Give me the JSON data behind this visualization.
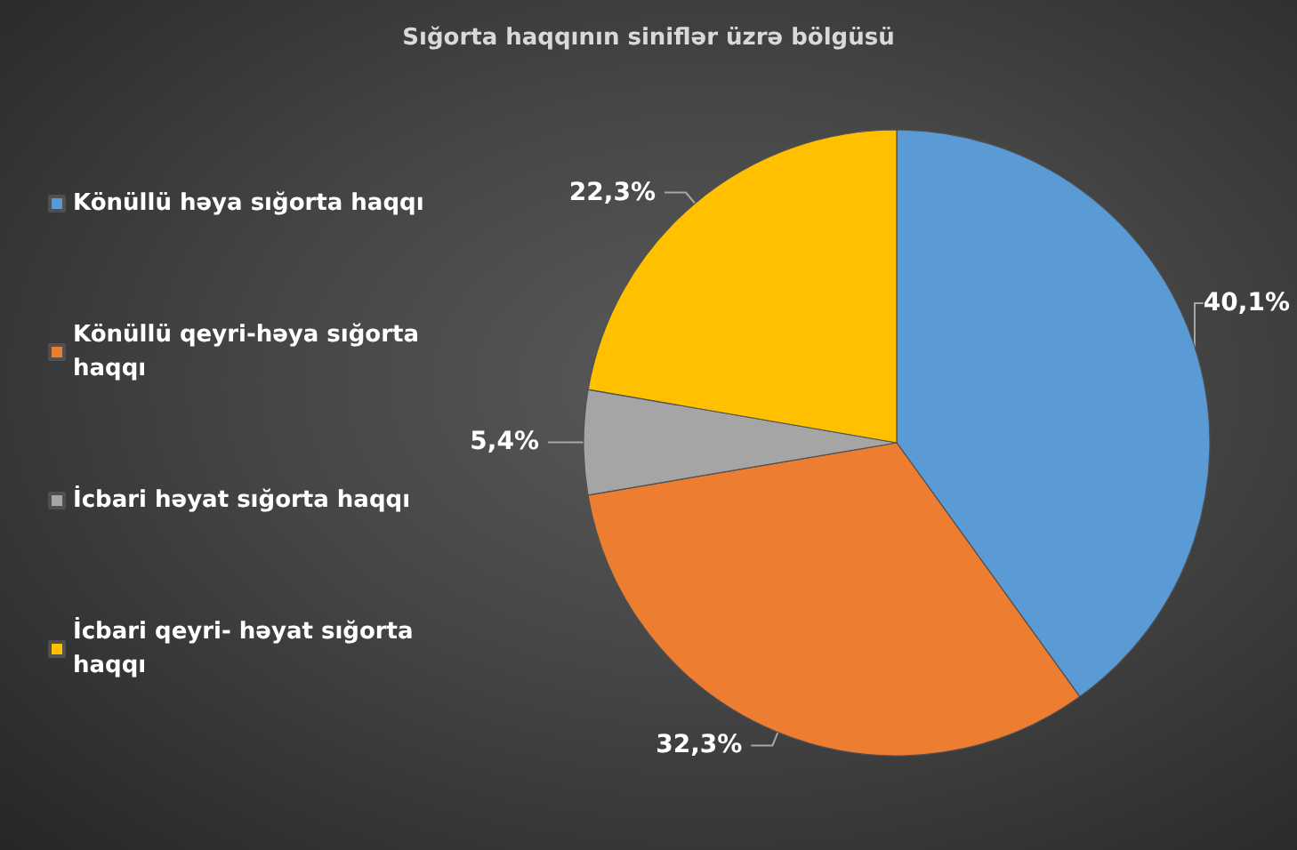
{
  "chart_data": {
    "type": "pie",
    "title": "Sığorta haqqının siniflər üzrə bölgüsü",
    "categories": [
      "Könüllü həya sığorta haqqı",
      "Könüllü qeyri-həya sığorta haqqı",
      "İcbari həyat sığorta haqqı",
      "İcbari qeyri- həyat sığorta haqqı"
    ],
    "values": [
      40.1,
      32.3,
      5.4,
      22.3
    ],
    "colors": [
      "#5b9bd5",
      "#ed7d31",
      "#a5a5a5",
      "#ffc000"
    ],
    "value_labels": [
      "40,1%",
      "32,3%",
      "5,4%",
      "22,3%"
    ],
    "legend": "left"
  }
}
